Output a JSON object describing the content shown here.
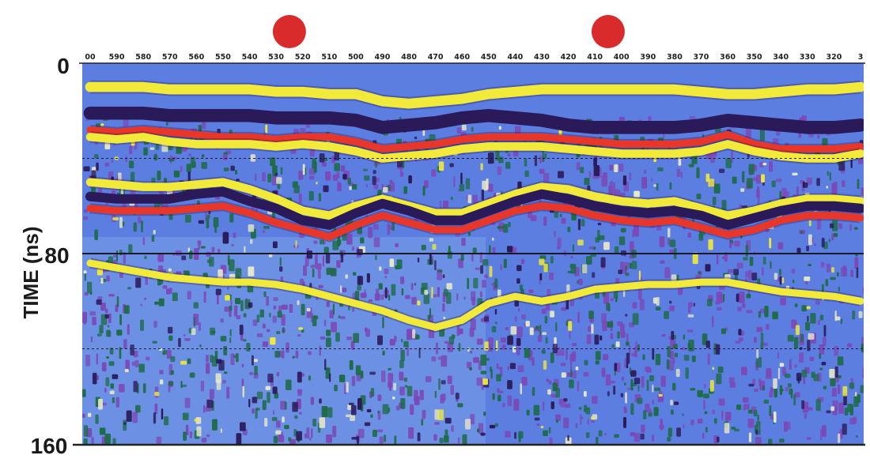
{
  "chart_data": {
    "type": "heatmap",
    "title": "",
    "ylabel": "TIME  (ns)",
    "xlabel": "",
    "yticks": [
      "0",
      "80",
      "160"
    ],
    "ylim": [
      0,
      160
    ],
    "yaxis_inverted": true,
    "xticks": [
      "00",
      "590",
      "580",
      "570",
      "560",
      "550",
      "540",
      "530",
      "520",
      "510",
      "500",
      "490",
      "480",
      "470",
      "460",
      "450",
      "440",
      "430",
      "420",
      "410",
      "400",
      "390",
      "380",
      "370",
      "360",
      "350",
      "340",
      "330",
      "320",
      "3"
    ],
    "markers": [
      {
        "name": "marker-1",
        "color": "#d92b2b",
        "between_ticks": [
          "530",
          "520"
        ]
      },
      {
        "name": "marker-2",
        "color": "#d92b2b",
        "between_ticks": [
          "410",
          "400"
        ]
      }
    ],
    "gridlines_ns": [
      40,
      80,
      120
    ],
    "colors": {
      "background": "#5b7ee0",
      "background_light": "#7aa0e8",
      "deep_violet": "#2a1a5a",
      "violet": "#7a4ab8",
      "green": "#1e6b4a",
      "yellow": "#f2ea3a",
      "red": "#e8372a",
      "pale": "#e8e8c8"
    },
    "bands": [
      {
        "name": "band-yellow-top",
        "color": "yellow",
        "depths_ns": [
          10,
          10,
          10,
          11,
          11,
          11,
          11,
          12,
          12,
          13,
          13,
          16,
          17,
          16,
          15,
          13,
          12,
          11,
          11,
          11,
          11,
          11,
          11,
          12,
          13,
          13,
          12,
          11,
          11,
          10
        ],
        "width": 4.2
      },
      {
        "name": "band-violet-top",
        "color": "deep_violet",
        "depths_ns": [
          21,
          21,
          21,
          22,
          22,
          22,
          22,
          23,
          23,
          23,
          24,
          27,
          26,
          25,
          23,
          22,
          23,
          24,
          26,
          27,
          27,
          27,
          27,
          26,
          24,
          25,
          26,
          27,
          27,
          26
        ],
        "width": 5.5
      },
      {
        "name": "band-red-top",
        "color": "red",
        "depths_ns": [
          28,
          29,
          28,
          29,
          30,
          31,
          31,
          32,
          31,
          31,
          33,
          36,
          35,
          34,
          32,
          31,
          31,
          31,
          32,
          33,
          34,
          34,
          34,
          33,
          30,
          34,
          36,
          36,
          36,
          35
        ],
        "width": 3
      },
      {
        "name": "band-yellow-mid",
        "color": "yellow",
        "depths_ns": [
          31,
          32,
          31,
          33,
          34,
          34,
          34,
          35,
          34,
          35,
          37,
          40,
          39,
          38,
          36,
          35,
          35,
          35,
          36,
          37,
          38,
          38,
          38,
          37,
          34,
          37,
          39,
          40,
          40,
          38
        ],
        "width": 3.5
      },
      {
        "name": "band-yellow-lower",
        "color": "yellow",
        "depths_ns": [
          50,
          51,
          52,
          52,
          51,
          50,
          53,
          57,
          62,
          64,
          60,
          57,
          60,
          63,
          63,
          59,
          55,
          52,
          53,
          56,
          58,
          59,
          58,
          61,
          64,
          62,
          59,
          57,
          57,
          58
        ],
        "width": 3.5
      },
      {
        "name": "band-violet-lower",
        "color": "deep_violet",
        "depths_ns": [
          56,
          57,
          57,
          57,
          55,
          54,
          58,
          61,
          66,
          68,
          63,
          59,
          62,
          66,
          66,
          62,
          58,
          55,
          57,
          60,
          62,
          63,
          62,
          64,
          68,
          65,
          62,
          60,
          60,
          61
        ],
        "width": 4
      },
      {
        "name": "band-red-lower",
        "color": "red",
        "depths_ns": [
          61,
          62,
          62,
          62,
          61,
          60,
          63,
          67,
          70,
          73,
          68,
          64,
          67,
          70,
          70,
          66,
          62,
          60,
          61,
          64,
          66,
          67,
          66,
          69,
          72,
          70,
          66,
          64,
          64,
          65
        ],
        "width": 3
      },
      {
        "name": "band-yellow-deep",
        "color": "yellow",
        "depths_ns": [
          84,
          86,
          88,
          90,
          91,
          92,
          92,
          93,
          95,
          98,
          101,
          104,
          108,
          111,
          108,
          101,
          98,
          100,
          98,
          95,
          94,
          93,
          93,
          92,
          92,
          94,
          96,
          97,
          98,
          100
        ],
        "width": 3
      }
    ]
  }
}
